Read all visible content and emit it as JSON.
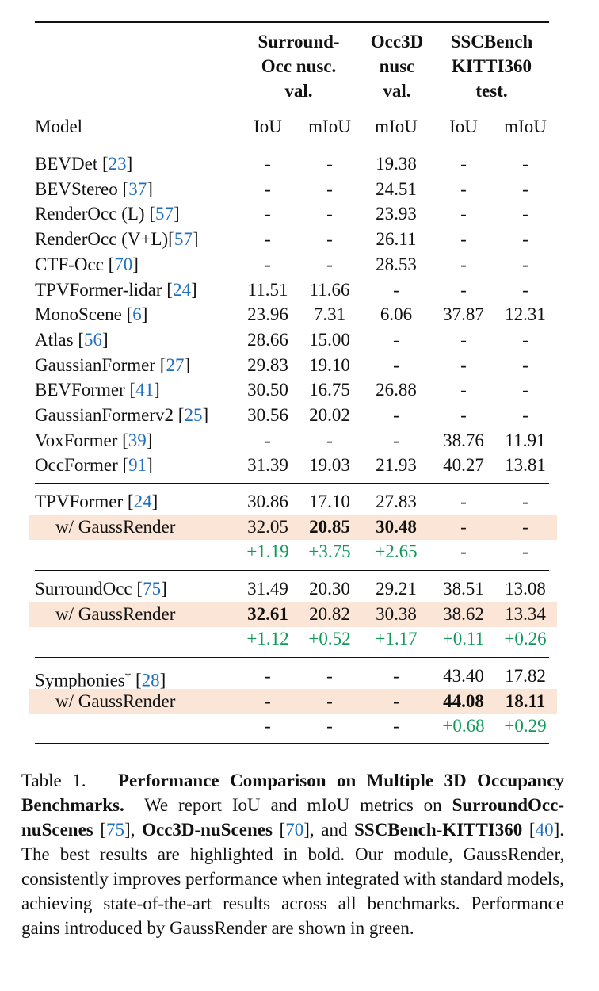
{
  "table": {
    "group_headers": [
      {
        "lines": [
          "Surround-",
          "Occ nusc.",
          "val."
        ]
      },
      {
        "lines": [
          "Occ3D",
          "nusc",
          "val."
        ]
      },
      {
        "lines": [
          "SSCBench",
          "KITTI360",
          "test."
        ]
      }
    ],
    "column_headers": [
      "Model",
      "IoU",
      "mIoU",
      "mIoU",
      "IoU",
      "mIoU"
    ],
    "rows": [
      {
        "name": "BEVDet",
        "ref": "23",
        "cells": [
          "-",
          "-",
          "19.38",
          "-",
          "-"
        ]
      },
      {
        "name": "BEVStereo",
        "ref": "37",
        "cells": [
          "-",
          "-",
          "24.51",
          "-",
          "-"
        ]
      },
      {
        "name": "RenderOcc (L)",
        "ref": "57",
        "cells": [
          "-",
          "-",
          "23.93",
          "-",
          "-"
        ]
      },
      {
        "name": "RenderOcc (V+L)",
        "ref": "57",
        "cells": [
          "-",
          "-",
          "26.11",
          "-",
          "-"
        ]
      },
      {
        "name": "CTF-Occ",
        "ref": "70",
        "cells": [
          "-",
          "-",
          "28.53",
          "-",
          "-"
        ]
      },
      {
        "name": "TPVFormer-lidar",
        "ref": "24",
        "cells": [
          "11.51",
          "11.66",
          "-",
          "-",
          "-"
        ]
      },
      {
        "name": "MonoScene",
        "ref": "6",
        "cells": [
          "23.96",
          "7.31",
          "6.06",
          "37.87",
          "12.31"
        ]
      },
      {
        "name": "Atlas",
        "ref": "56",
        "cells": [
          "28.66",
          "15.00",
          "-",
          "-",
          "-"
        ]
      },
      {
        "name": "GaussianFormer",
        "ref": "27",
        "cells": [
          "29.83",
          "19.10",
          "-",
          "-",
          "-"
        ]
      },
      {
        "name": "BEVFormer",
        "ref": "41",
        "cells": [
          "30.50",
          "16.75",
          "26.88",
          "-",
          "-"
        ]
      },
      {
        "name": "GaussianFormerv2",
        "ref": "25",
        "cells": [
          "30.56",
          "20.02",
          "-",
          "-",
          "-"
        ]
      },
      {
        "name": "VoxFormer",
        "ref": "39",
        "cells": [
          "-",
          "-",
          "-",
          "38.76",
          "11.91"
        ]
      },
      {
        "name": "OccFormer",
        "ref": "91",
        "cells": [
          "31.39",
          "19.03",
          "21.93",
          "40.27",
          "13.81"
        ]
      }
    ],
    "groups": [
      {
        "base": {
          "name": "TPVFormer",
          "ref": "24",
          "cells": [
            "30.86",
            "17.10",
            "27.83",
            "-",
            "-"
          ]
        },
        "plus": {
          "name": "w/ GaussRender",
          "cells": [
            "32.05",
            "20.85",
            "30.48",
            "-",
            "-"
          ],
          "bold": [
            false,
            true,
            true,
            false,
            false
          ]
        },
        "gain": [
          "+1.19",
          "+3.75",
          "+2.65",
          "-",
          "-"
        ]
      },
      {
        "base": {
          "name": "SurroundOcc",
          "ref": "75",
          "cells": [
            "31.49",
            "20.30",
            "29.21",
            "38.51",
            "13.08"
          ]
        },
        "plus": {
          "name": "w/ GaussRender",
          "cells": [
            "32.61",
            "20.82",
            "30.38",
            "38.62",
            "13.34"
          ],
          "bold": [
            true,
            false,
            false,
            false,
            false
          ]
        },
        "gain": [
          "+1.12",
          "+0.52",
          "+1.17",
          "+0.11",
          "+0.26"
        ]
      },
      {
        "base": {
          "name": "Symphonies",
          "sup": "†",
          "ref": "28",
          "cells": [
            "-",
            "-",
            "-",
            "43.40",
            "17.82"
          ]
        },
        "plus": {
          "name": "w/ GaussRender",
          "cells": [
            "-",
            "-",
            "-",
            "44.08",
            "18.11"
          ],
          "bold": [
            false,
            false,
            false,
            true,
            true
          ]
        },
        "gain": [
          "-",
          "-",
          "-",
          "+0.68",
          "+0.29"
        ]
      }
    ]
  },
  "caption": {
    "label": "Table 1.",
    "title": "Performance Comparison on Multiple 3D Occupancy Benchmarks.",
    "p1": "We report IoU and mIoU metrics on",
    "b1": "SurroundOcc-nuScenes",
    "r1": "75",
    "b2": "Occ3D-nuScenes",
    "r2": "70",
    "and": ", and",
    "b3": "SSCBench-KITTI360",
    "r3": "40",
    "rest": ". The best results are highlighted in bold. Our module, GaussRender, consistently improves performance when integrated with standard models, achieving state-of-the-art results across all benchmarks. Performance gains introduced by GaussRender are shown in green."
  },
  "colors": {
    "gain": "#0f9a5a",
    "ref": "#1f6fbf",
    "highlight": "#fbe5d6"
  }
}
